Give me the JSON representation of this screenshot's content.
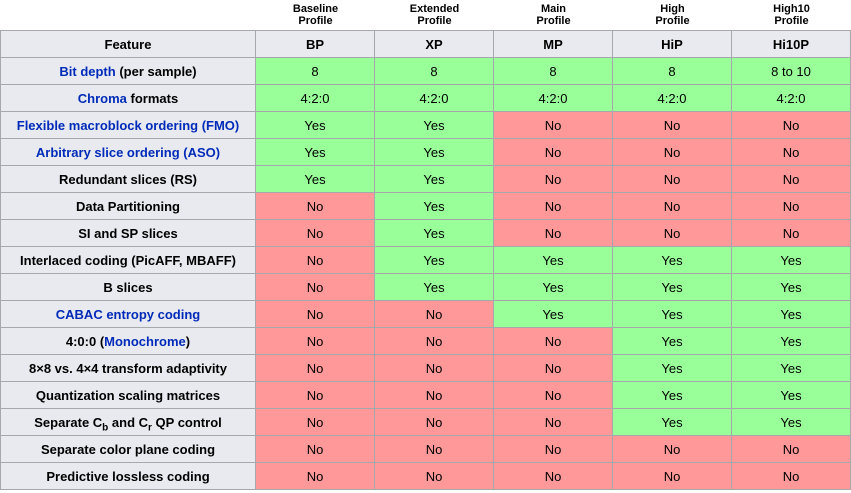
{
  "feature_header": "Feature",
  "no_label": "No",
  "yes_label": "Yes",
  "colors": {
    "yes_bg": "#99ff99",
    "no_bg": "#ff9999",
    "header_bg": "#e9eaf0",
    "border": "#a6a8ab",
    "outer_border": "#7d7d7d",
    "link": "#002bb8",
    "text": "#000000"
  },
  "profiles": [
    {
      "label_line1": "Baseline",
      "label_line2": "Profile",
      "abbr": "BP"
    },
    {
      "label_line1": "Extended",
      "label_line2": "Profile",
      "abbr": "XP"
    },
    {
      "label_line1": "Main",
      "label_line2": "Profile",
      "abbr": "MP"
    },
    {
      "label_line1": "High",
      "label_line2": "Profile",
      "abbr": "HiP"
    },
    {
      "label_line1": "High10",
      "label_line2": "Profile",
      "abbr": "Hi10P"
    }
  ],
  "rows": [
    {
      "feature": [
        {
          "t": "Bit depth",
          "link": true
        },
        {
          "t": " (per sample)"
        }
      ],
      "values": [
        "8",
        "8",
        "8",
        "8",
        "8 to 10"
      ]
    },
    {
      "feature": [
        {
          "t": "Chroma",
          "link": true
        },
        {
          "t": " formats"
        }
      ],
      "values": [
        "4:2:0",
        "4:2:0",
        "4:2:0",
        "4:2:0",
        "4:2:0"
      ]
    },
    {
      "feature": [
        {
          "t": "Flexible macroblock ordering (FMO)",
          "link": true
        }
      ],
      "values": [
        "Yes",
        "Yes",
        "No",
        "No",
        "No"
      ]
    },
    {
      "feature": [
        {
          "t": "Arbitrary slice ordering (ASO)",
          "link": true
        }
      ],
      "values": [
        "Yes",
        "Yes",
        "No",
        "No",
        "No"
      ]
    },
    {
      "feature": [
        {
          "t": "Redundant slices (RS)"
        }
      ],
      "values": [
        "Yes",
        "Yes",
        "No",
        "No",
        "No"
      ]
    },
    {
      "feature": [
        {
          "t": "Data Partitioning"
        }
      ],
      "values": [
        "No",
        "Yes",
        "No",
        "No",
        "No"
      ]
    },
    {
      "feature": [
        {
          "t": "SI and SP slices"
        }
      ],
      "values": [
        "No",
        "Yes",
        "No",
        "No",
        "No"
      ]
    },
    {
      "feature": [
        {
          "t": "Interlaced coding (PicAFF, MBAFF)"
        }
      ],
      "values": [
        "No",
        "Yes",
        "Yes",
        "Yes",
        "Yes"
      ]
    },
    {
      "feature": [
        {
          "t": "B slices"
        }
      ],
      "values": [
        "No",
        "Yes",
        "Yes",
        "Yes",
        "Yes"
      ]
    },
    {
      "feature": [
        {
          "t": "CABAC entropy coding",
          "link": true
        }
      ],
      "values": [
        "No",
        "No",
        "Yes",
        "Yes",
        "Yes"
      ]
    },
    {
      "feature": [
        {
          "t": "4:0:0 ("
        },
        {
          "t": "Monochrome",
          "link": true
        },
        {
          "t": ")"
        }
      ],
      "values": [
        "No",
        "No",
        "No",
        "Yes",
        "Yes"
      ]
    },
    {
      "feature": [
        {
          "t": "8×8 vs. 4×4 transform adaptivity"
        }
      ],
      "values": [
        "No",
        "No",
        "No",
        "Yes",
        "Yes"
      ]
    },
    {
      "feature": [
        {
          "t": "Quantization scaling matrices"
        }
      ],
      "values": [
        "No",
        "No",
        "No",
        "Yes",
        "Yes"
      ]
    },
    {
      "feature": [
        {
          "t": "Separate C"
        },
        {
          "t": "b",
          "sub": true
        },
        {
          "t": " and C"
        },
        {
          "t": "r",
          "sub": true
        },
        {
          "t": " QP control"
        }
      ],
      "values": [
        "No",
        "No",
        "No",
        "Yes",
        "Yes"
      ]
    },
    {
      "feature": [
        {
          "t": "Separate color plane coding"
        }
      ],
      "values": [
        "No",
        "No",
        "No",
        "No",
        "No"
      ]
    },
    {
      "feature": [
        {
          "t": "Predictive lossless coding"
        }
      ],
      "values": [
        "No",
        "No",
        "No",
        "No",
        "No"
      ]
    }
  ]
}
